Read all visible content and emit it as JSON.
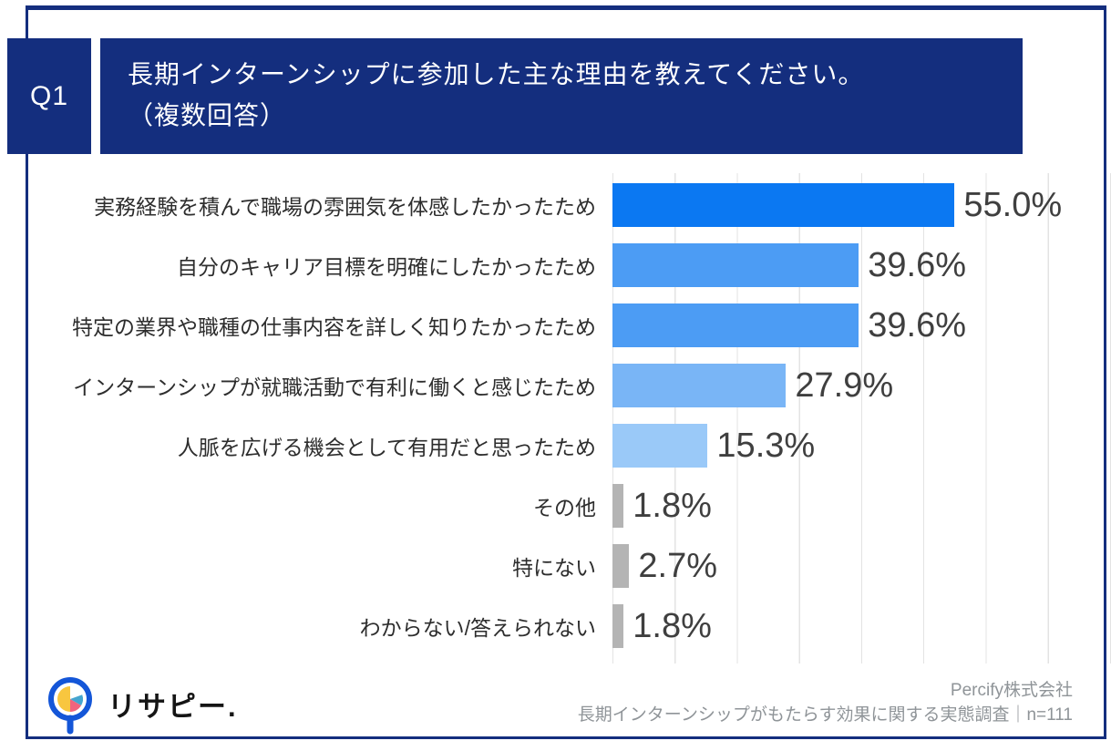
{
  "header": {
    "q_label": "Q1",
    "title_line1": "長期インターンシップに参加した主な理由を教えてください。",
    "title_line2": "（複数回答）"
  },
  "chart_data": {
    "type": "bar",
    "orientation": "horizontal",
    "title": "長期インターンシップに参加した主な理由（複数回答）",
    "categories": [
      "実務経験を積んで職場の雰囲気を体感したかったため",
      "自分のキャリア目標を明確にしたかったため",
      "特定の業界や職種の仕事内容を詳しく知りたかったため",
      "インターンシップが就職活動で有利に働くと感じたため",
      "人脈を広げる機会として有用だと思ったため",
      "その他",
      "特にない",
      "わからない/答えられない"
    ],
    "values": [
      55.0,
      39.6,
      39.6,
      27.9,
      15.3,
      1.8,
      2.7,
      1.8
    ],
    "value_labels": [
      "55.0%",
      "39.6%",
      "39.6%",
      "27.9%",
      "15.3%",
      "1.8%",
      "2.7%",
      "1.8%"
    ],
    "bar_colors": [
      "#0b78f2",
      "#4c9cf4",
      "#4c9cf4",
      "#79b5f6",
      "#9ac9f8",
      "#b4b4b4",
      "#b4b4b4",
      "#b4b4b4"
    ],
    "xlim": [
      0,
      80
    ],
    "grid_interval": 10,
    "grid": true,
    "legend": false
  },
  "footer": {
    "logo_text": "リサピー.",
    "source_line1": "Percify株式会社",
    "source_line2": "長期インターンシップがもたらす効果に関する実態調査｜n=111"
  },
  "colors": {
    "accent_navy": "#142e7e",
    "primary_bar_blue": "#0b78f2",
    "neutral_bar_gray": "#b4b4b4",
    "gridline": "#e3e3e3",
    "logo_ring_blue": "#1456d8",
    "logo_pie_yellow": "#f8c63f",
    "logo_pie_pink": "#f2647e",
    "logo_pie_teal": "#45a5cf"
  }
}
